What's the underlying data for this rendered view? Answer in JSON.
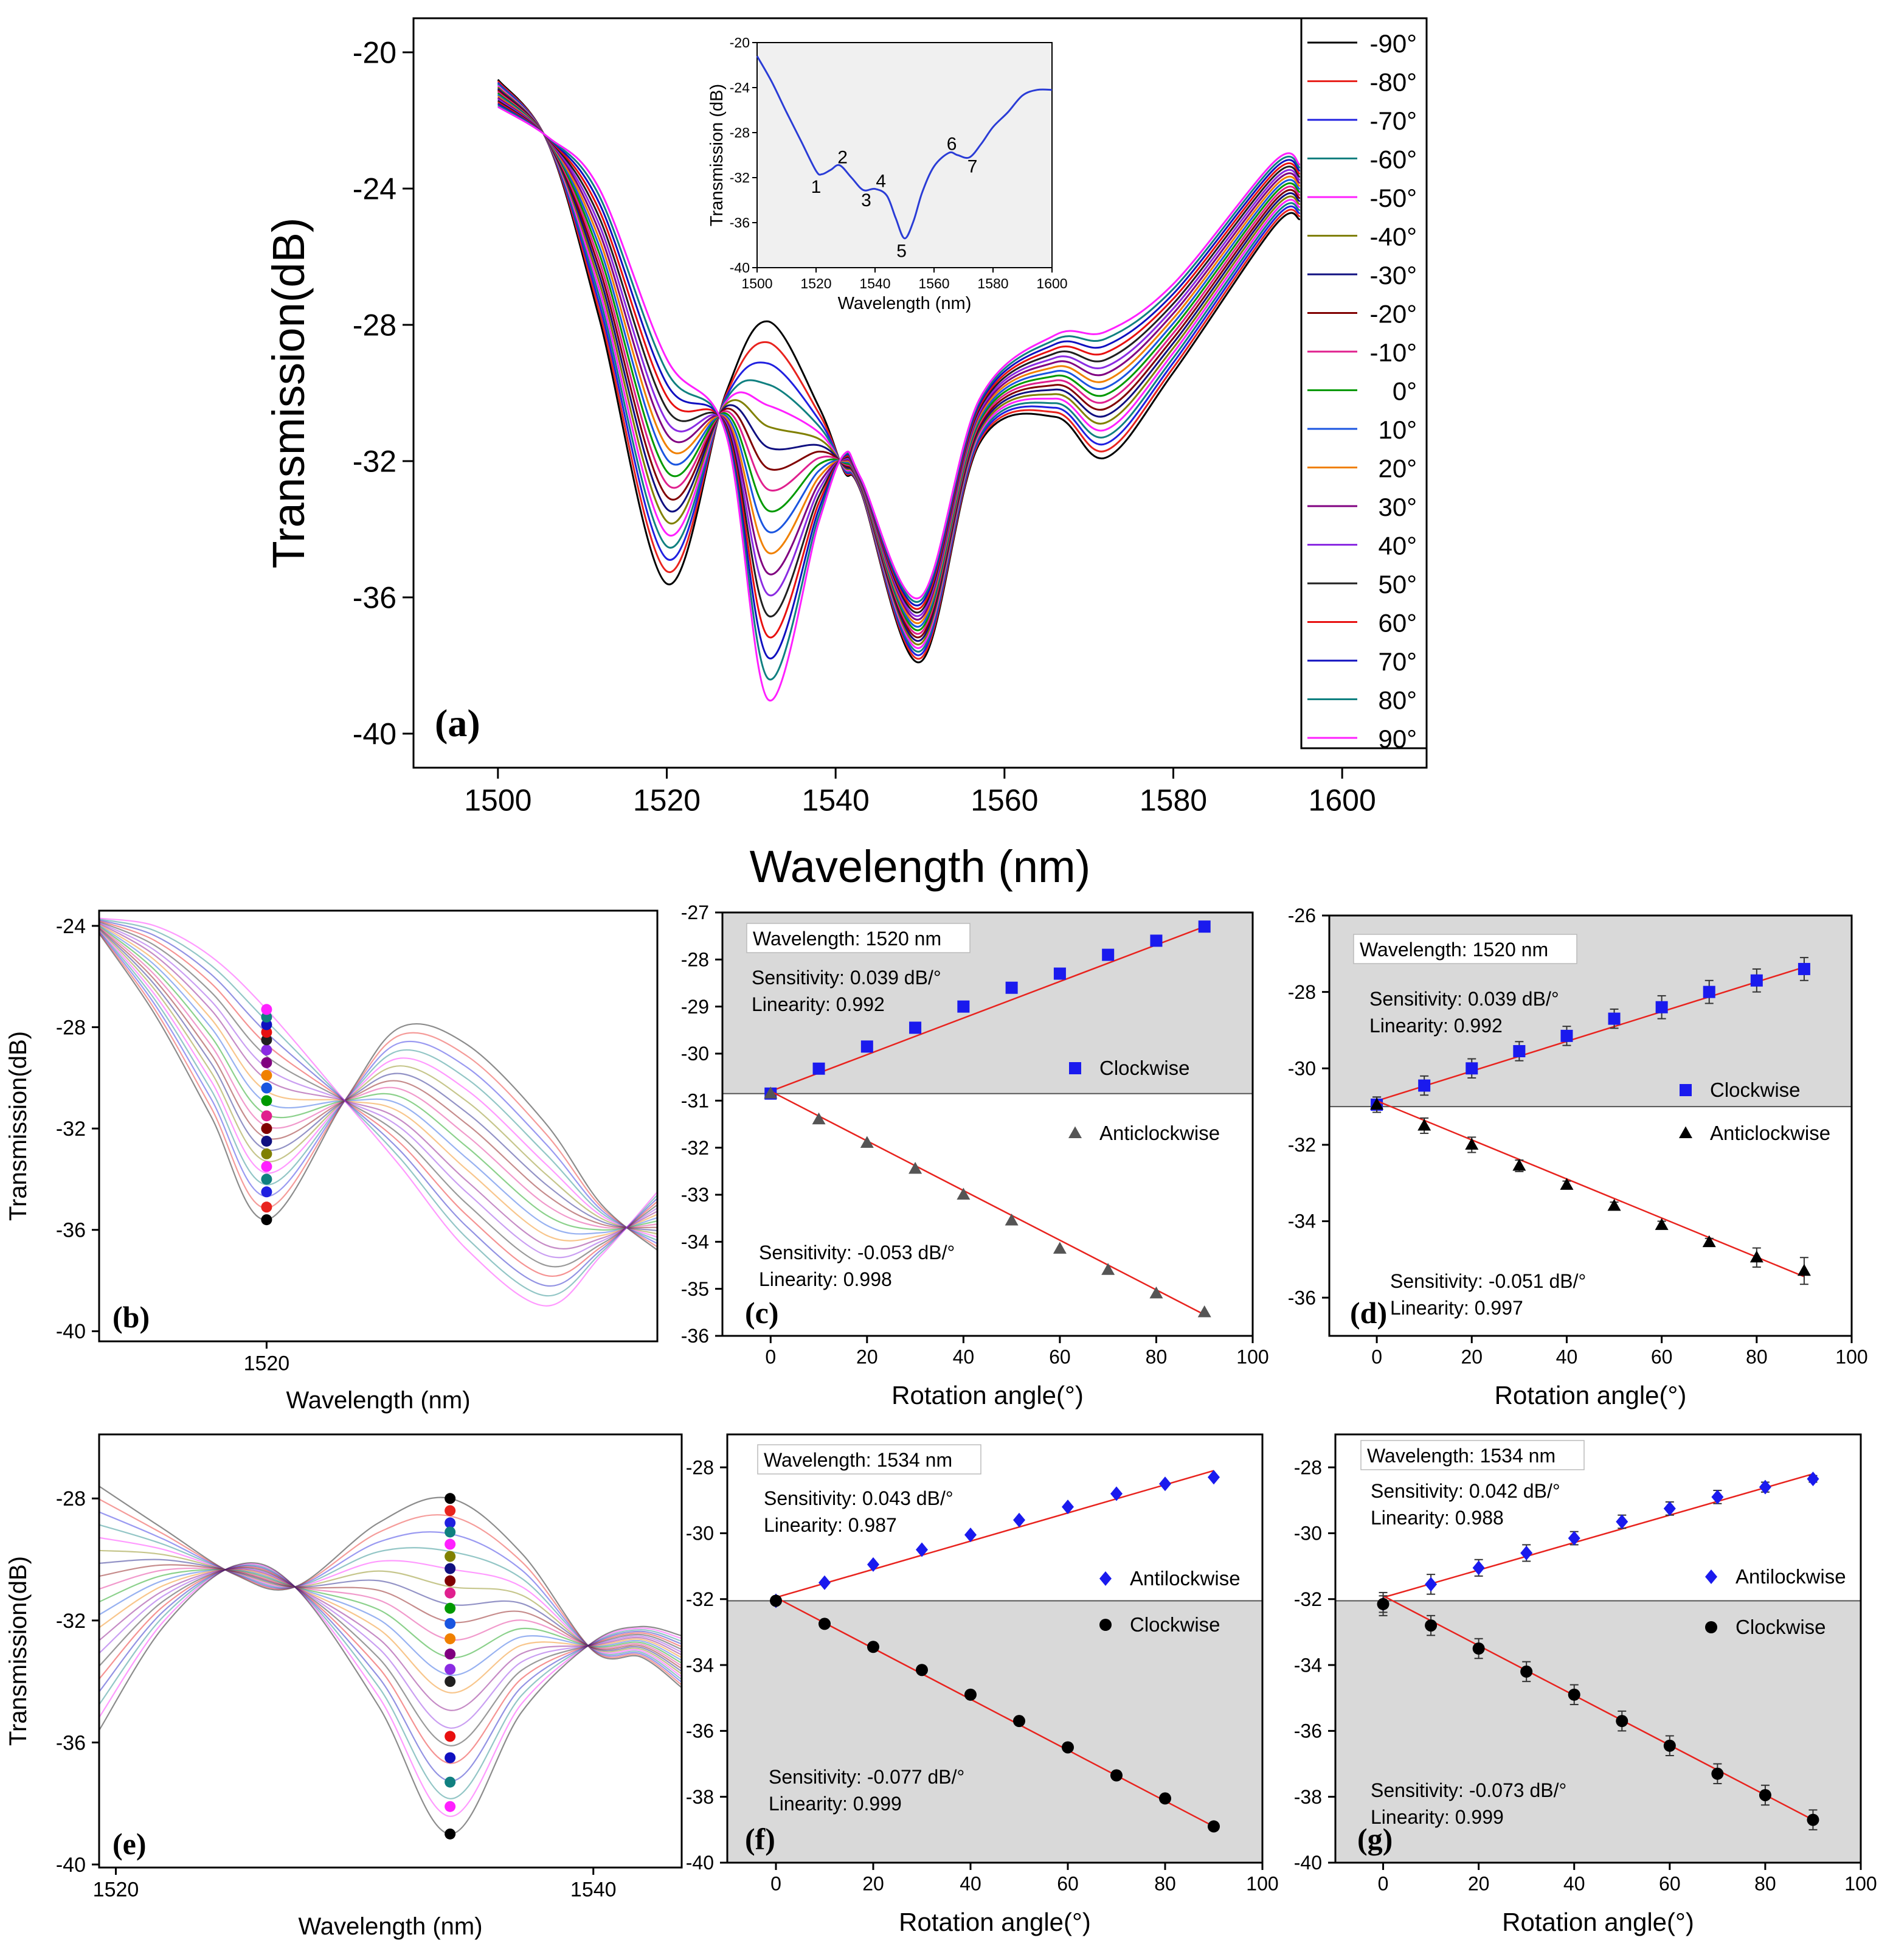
{
  "colors": [
    "#000000",
    "#e8231e",
    "#2020e0",
    "#108080",
    "#ff20ff",
    "#808000",
    "#101080",
    "#800000",
    "#e0208e",
    "#009900",
    "#1a55e0",
    "#f08000",
    "#800080",
    "#8a2be2",
    "#202020",
    "#e81010",
    "#1010c0",
    "#108080",
    "#ff20ff"
  ],
  "chart_data": [
    {
      "panel": "(a)",
      "type": "line",
      "xlabel": "Wavelength (nm)",
      "ylabel": "Transmission(dB)",
      "xlim": [
        1490,
        1610
      ],
      "ylim": [
        -41,
        -19
      ],
      "xticks": [
        1500,
        1520,
        1540,
        1560,
        1580,
        1600
      ],
      "yticks": [
        -40,
        -36,
        -32,
        -28,
        -24,
        -20
      ],
      "legend": [
        "-90°",
        "-80°",
        "-70°",
        "-60°",
        "-50°",
        "-40°",
        "-30°",
        "-20°",
        "-10°",
        "0°",
        "10°",
        "20°",
        "30°",
        "40°",
        "50°",
        "60°",
        "70°",
        "80°",
        "90°"
      ],
      "legend_position": "right",
      "series_extremes": {
        "-90°": {
          "x": [
            1500,
            1506,
            1512,
            1520,
            1527,
            1532,
            1538,
            1541,
            1543,
            1550,
            1557,
            1566,
            1572,
            1580,
            1592,
            1595
          ],
          "y": [
            -20.8,
            -22.7,
            -27.8,
            -35.6,
            -30.0,
            -27.9,
            -30.4,
            -32.3,
            -32.9,
            -37.9,
            -31.5,
            -30.7,
            -31.9,
            -29.4,
            -25.1,
            -24.9
          ]
        },
        "90°": {
          "x": [
            1500,
            1506,
            1512,
            1520,
            1527,
            1534,
            1538,
            1541,
            1543,
            1550,
            1557,
            1566,
            1572,
            1580,
            1592,
            1595
          ],
          "y": [
            -21.6,
            -22.5,
            -24.0,
            -29.0,
            -31.2,
            -39.0,
            -33.8,
            -31.8,
            -32.5,
            -36.0,
            -30.2,
            -28.3,
            -28.2,
            -26.8,
            -23.2,
            -23.3
          ]
        }
      },
      "inset": {
        "xlabel": "Wavelength (nm)",
        "ylabel": "Transmission (dB)",
        "xlim": [
          1500,
          1600
        ],
        "ylim": [
          -40,
          -20
        ],
        "xticks": [
          1500,
          1520,
          1540,
          1560,
          1580,
          1600
        ],
        "yticks": [
          -40,
          -36,
          -32,
          -28,
          -24,
          -20
        ],
        "x": [
          1500,
          1505,
          1510,
          1515,
          1520,
          1522,
          1525,
          1528,
          1532,
          1536,
          1540,
          1544,
          1547,
          1550,
          1553,
          1556,
          1560,
          1565,
          1568,
          1572,
          1576,
          1580,
          1585,
          1590,
          1595,
          1600
        ],
        "y": [
          -21.2,
          -23.5,
          -26.2,
          -28.8,
          -31.4,
          -31.7,
          -31.3,
          -30.9,
          -32.0,
          -33.1,
          -33.0,
          -33.6,
          -35.6,
          -37.4,
          -35.9,
          -33.3,
          -31.0,
          -29.8,
          -30.0,
          -30.2,
          -29.0,
          -27.5,
          -26.2,
          -24.7,
          -24.2,
          -24.2
        ],
        "peak_labels": [
          {
            "text": "1",
            "x": 1520,
            "y": -32.8
          },
          {
            "text": "2",
            "x": 1529,
            "y": -30.2
          },
          {
            "text": "3",
            "x": 1537,
            "y": -34.0
          },
          {
            "text": "4",
            "x": 1542,
            "y": -32.3
          },
          {
            "text": "5",
            "x": 1549,
            "y": -38.5
          },
          {
            "text": "6",
            "x": 1566,
            "y": -29.0
          },
          {
            "text": "7",
            "x": 1573,
            "y": -31.0
          }
        ]
      }
    },
    {
      "panel": "(b)",
      "type": "line",
      "xlabel": "Wavelength (nm)",
      "ylabel": "Transmission(dB)",
      "xlim": [
        1505,
        1555
      ],
      "ylim": [
        -40.4,
        -23.4
      ],
      "xticks": [
        1520
      ],
      "yticks": [
        -40,
        -36,
        -32,
        -28,
        -24
      ],
      "marker_x": 1520,
      "marker_y": [
        -35.6,
        -35.1,
        -34.5,
        -34.0,
        -33.5,
        -33.0,
        -32.5,
        -32.0,
        -31.5,
        -30.9,
        -30.4,
        -29.9,
        -29.4,
        -28.9,
        -28.5,
        -28.2,
        -27.9,
        -27.6,
        -27.3
      ]
    },
    {
      "panel": "(c)",
      "type": "scatter",
      "xlabel": "Rotation angle(°)",
      "ylabel": "",
      "xlim": [
        -10,
        100
      ],
      "ylim": [
        -36,
        -27
      ],
      "xticks": [
        0,
        20,
        40,
        60,
        80,
        100
      ],
      "yticks": [
        -36,
        -35,
        -34,
        -33,
        -32,
        -31,
        -30,
        -29,
        -28,
        -27
      ],
      "box_label": "Wavelength: 1520 nm",
      "shade_from": -30.85,
      "series": [
        {
          "name": "Clockwise",
          "marker": "square",
          "color": "#1a1aee",
          "x": [
            0,
            10,
            20,
            30,
            40,
            50,
            60,
            70,
            80,
            90
          ],
          "y": [
            -30.85,
            -30.32,
            -29.85,
            -29.45,
            -29.0,
            -28.6,
            -28.3,
            -27.9,
            -27.6,
            -27.3
          ],
          "fit": [
            -30.8,
            -27.3
          ],
          "sensitivity": "Sensitivity: 0.039 dB/°",
          "linearity": "Linearity: 0.992"
        },
        {
          "name": "Anticlockwise",
          "marker": "triangle",
          "color": "#555555",
          "x": [
            0,
            10,
            20,
            30,
            40,
            50,
            60,
            70,
            80,
            90
          ],
          "y": [
            -30.85,
            -31.4,
            -31.9,
            -32.45,
            -33.0,
            -33.55,
            -34.15,
            -34.6,
            -35.1,
            -35.5
          ],
          "fit": [
            -30.8,
            -35.55
          ],
          "sensitivity": "Sensitivity: -0.053 dB/°",
          "linearity": "Linearity: 0.998"
        }
      ]
    },
    {
      "panel": "(d)",
      "type": "scatter",
      "xlabel": "Rotation angle(°)",
      "ylabel": "",
      "xlim": [
        -10,
        100
      ],
      "ylim": [
        -37,
        -26
      ],
      "xticks": [
        0,
        20,
        40,
        60,
        80,
        100
      ],
      "yticks": [
        -36,
        -34,
        -32,
        -30,
        -28,
        -26
      ],
      "box_label": "Wavelength: 1520 nm",
      "shade_from": -31.0,
      "series": [
        {
          "name": "Clockwise",
          "marker": "square",
          "color": "#1a1aee",
          "x": [
            0,
            10,
            20,
            30,
            40,
            50,
            60,
            70,
            80,
            90
          ],
          "y": [
            -30.95,
            -30.45,
            -30.0,
            -29.55,
            -29.15,
            -28.7,
            -28.4,
            -28.0,
            -27.7,
            -27.4
          ],
          "err": [
            0.2,
            0.25,
            0.25,
            0.25,
            0.25,
            0.25,
            0.3,
            0.3,
            0.3,
            0.3
          ],
          "fit": [
            -30.85,
            -27.35
          ],
          "sensitivity": "Sensitivity: 0.039 dB/°",
          "linearity": "Linearity: 0.992"
        },
        {
          "name": "Anticlockwise",
          "marker": "triangle",
          "color": "#000000",
          "x": [
            0,
            10,
            20,
            30,
            40,
            50,
            60,
            70,
            80,
            90
          ],
          "y": [
            -30.95,
            -31.5,
            -32.0,
            -32.55,
            -33.05,
            -33.6,
            -34.1,
            -34.55,
            -34.95,
            -35.3
          ],
          "err": [
            0.2,
            0.2,
            0.2,
            0.15,
            0.1,
            0.1,
            0.1,
            0.1,
            0.25,
            0.35
          ],
          "fit": [
            -30.85,
            -35.45
          ],
          "sensitivity": "Sensitivity: -0.051 dB/°",
          "linearity": "Linearity: 0.997"
        }
      ]
    },
    {
      "panel": "(e)",
      "type": "line",
      "xlabel": "Wavelength (nm)",
      "ylabel": "Transmission(dB)",
      "xlim": [
        1519.3,
        1543.7
      ],
      "ylim": [
        -40.1,
        -25.9
      ],
      "xticks": [
        1520,
        1540
      ],
      "yticks": [
        -40,
        -36,
        -32,
        -28
      ],
      "marker_x": 1534,
      "marker_y": [
        -28.0,
        -28.4,
        -28.8,
        -29.1,
        -29.5,
        -29.9,
        -30.3,
        -30.7,
        -31.1,
        -31.6,
        -32.1,
        -32.6,
        -33.1,
        -33.6,
        -34.0,
        -35.8,
        -36.5,
        -37.3,
        -38.1,
        -39.0
      ]
    },
    {
      "panel": "(f)",
      "type": "scatter",
      "xlabel": "Rotation angle(°)",
      "ylabel": "",
      "xlim": [
        -10,
        100
      ],
      "ylim": [
        -40,
        -27
      ],
      "xticks": [
        0,
        20,
        40,
        60,
        80,
        100
      ],
      "yticks": [
        -40,
        -38,
        -36,
        -34,
        -32,
        -30,
        -28
      ],
      "box_label": "Wavelength: 1534 nm",
      "shade_to": -32.05,
      "series": [
        {
          "name": "Antilockwise",
          "marker": "diamond",
          "color": "#1a1aee",
          "x": [
            0,
            10,
            20,
            30,
            40,
            50,
            60,
            70,
            80,
            90
          ],
          "y": [
            -32.05,
            -31.5,
            -30.95,
            -30.5,
            -30.05,
            -29.6,
            -29.2,
            -28.8,
            -28.5,
            -28.3
          ],
          "fit": [
            -31.95,
            -28.1
          ],
          "sensitivity": "Sensitivity: 0.043 dB/°",
          "linearity": "Linearity: 0.987"
        },
        {
          "name": "Clockwise",
          "marker": "circle",
          "color": "#000000",
          "x": [
            0,
            10,
            20,
            30,
            40,
            50,
            60,
            70,
            80,
            90
          ],
          "y": [
            -32.05,
            -32.75,
            -33.45,
            -34.15,
            -34.9,
            -35.7,
            -36.5,
            -37.35,
            -38.05,
            -38.9
          ],
          "fit": [
            -31.95,
            -38.9
          ],
          "sensitivity": "Sensitivity: -0.077 dB/°",
          "linearity": "Linearity: 0.999"
        }
      ]
    },
    {
      "panel": "(g)",
      "type": "scatter",
      "xlabel": "Rotation angle(°)",
      "ylabel": "",
      "xlim": [
        -10,
        100
      ],
      "ylim": [
        -40,
        -27
      ],
      "xticks": [
        0,
        20,
        40,
        60,
        80,
        100
      ],
      "yticks": [
        -40,
        -38,
        -36,
        -34,
        -32,
        -30,
        -28
      ],
      "box_label": "Wavelength: 1534 nm",
      "shade_to": -32.05,
      "series": [
        {
          "name": "Antilockwise",
          "marker": "diamond",
          "color": "#1a1aee",
          "x": [
            0,
            10,
            20,
            30,
            40,
            50,
            60,
            70,
            80,
            90
          ],
          "y": [
            -32.15,
            -31.55,
            -31.05,
            -30.6,
            -30.15,
            -29.65,
            -29.25,
            -28.9,
            -28.6,
            -28.35
          ],
          "err": [
            0.35,
            0.3,
            0.25,
            0.25,
            0.2,
            0.2,
            0.2,
            0.2,
            0.15,
            0.1
          ],
          "fit": [
            -31.95,
            -28.2
          ],
          "sensitivity": "Sensitivity: 0.042 dB/°",
          "linearity": "Linearity: 0.988"
        },
        {
          "name": "Clockwise",
          "marker": "circle",
          "color": "#000000",
          "x": [
            0,
            10,
            20,
            30,
            40,
            50,
            60,
            70,
            80,
            90
          ],
          "y": [
            -32.15,
            -32.8,
            -33.5,
            -34.2,
            -34.9,
            -35.7,
            -36.45,
            -37.3,
            -37.95,
            -38.7
          ],
          "err": [
            0.25,
            0.3,
            0.3,
            0.3,
            0.3,
            0.3,
            0.3,
            0.3,
            0.3,
            0.3
          ],
          "fit": [
            -31.9,
            -38.7
          ],
          "sensitivity": "Sensitivity: -0.073 dB/°",
          "linearity": "Linearity: 0.999"
        }
      ]
    }
  ]
}
